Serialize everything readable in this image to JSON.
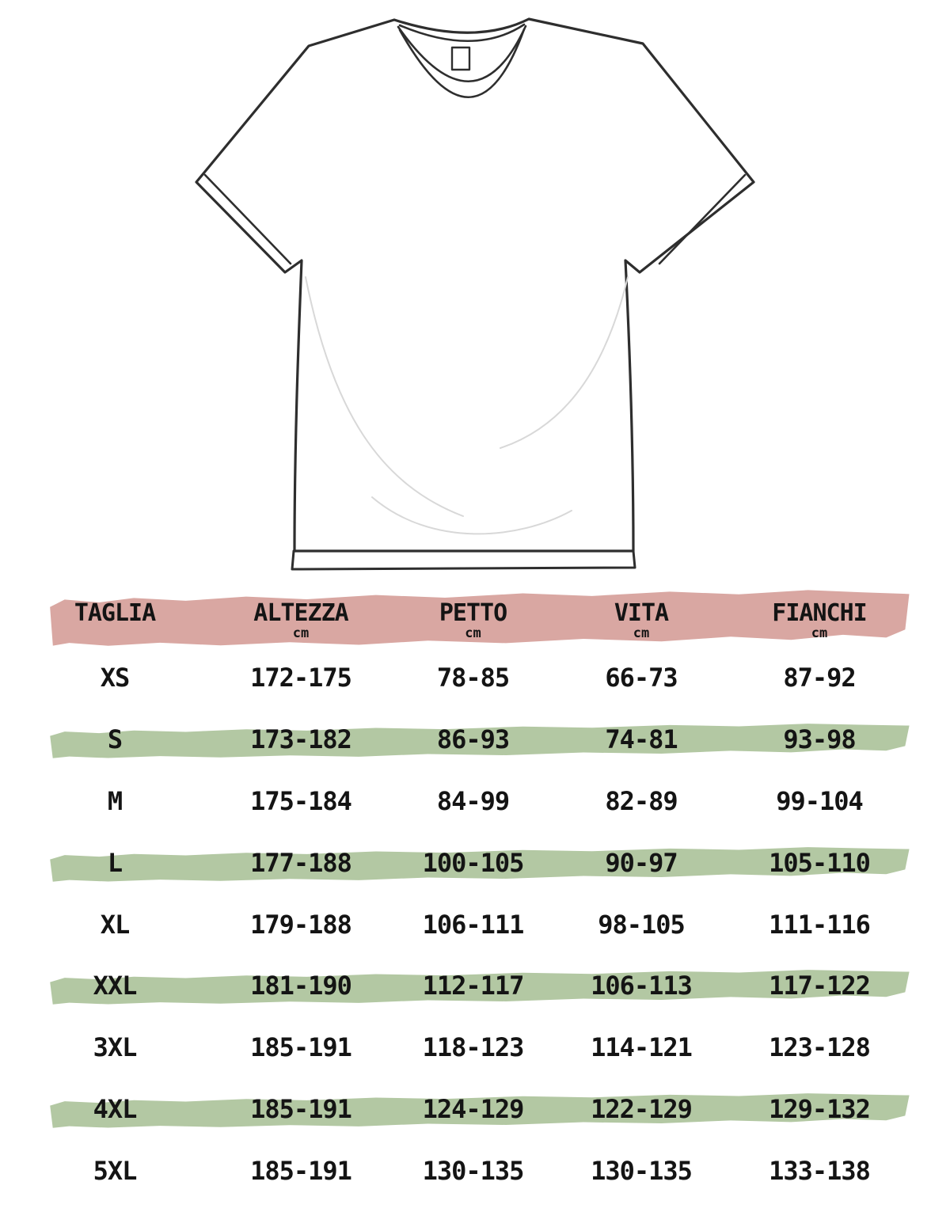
{
  "illustration": {
    "name": "t-shirt flat sketch",
    "outline_color": "#2e2e2e",
    "crease_color": "#d8d8d8",
    "fill_color": "#ffffff"
  },
  "table": {
    "header_bg": "#d9a7a2",
    "highlight_bg": "#b3c8a3",
    "text_color": "#141414",
    "columns": [
      {
        "label": "TAGLIA",
        "unit": ""
      },
      {
        "label": "ALTEZZA",
        "unit": "cm"
      },
      {
        "label": "PETTO",
        "unit": "cm"
      },
      {
        "label": "VITA",
        "unit": "cm"
      },
      {
        "label": "FIANCHI",
        "unit": "cm"
      }
    ],
    "rows": [
      {
        "size": "XS",
        "altezza": "172-175",
        "petto": "78-85",
        "vita": "66-73",
        "fianchi": "87-92",
        "highlight": false
      },
      {
        "size": "S",
        "altezza": "173-182",
        "petto": "86-93",
        "vita": "74-81",
        "fianchi": "93-98",
        "highlight": true
      },
      {
        "size": "M",
        "altezza": "175-184",
        "petto": "84-99",
        "vita": "82-89",
        "fianchi": "99-104",
        "highlight": false
      },
      {
        "size": "L",
        "altezza": "177-188",
        "petto": "100-105",
        "vita": "90-97",
        "fianchi": "105-110",
        "highlight": true
      },
      {
        "size": "XL",
        "altezza": "179-188",
        "petto": "106-111",
        "vita": "98-105",
        "fianchi": "111-116",
        "highlight": false
      },
      {
        "size": "XXL",
        "altezza": "181-190",
        "petto": "112-117",
        "vita": "106-113",
        "fianchi": "117-122",
        "highlight": true
      },
      {
        "size": "3XL",
        "altezza": "185-191",
        "petto": "118-123",
        "vita": "114-121",
        "fianchi": "123-128",
        "highlight": false
      },
      {
        "size": "4XL",
        "altezza": "185-191",
        "petto": "124-129",
        "vita": "122-129",
        "fianchi": "129-132",
        "highlight": true
      },
      {
        "size": "5XL",
        "altezza": "185-191",
        "petto": "130-135",
        "vita": "130-135",
        "fianchi": "133-138",
        "highlight": false
      }
    ]
  }
}
